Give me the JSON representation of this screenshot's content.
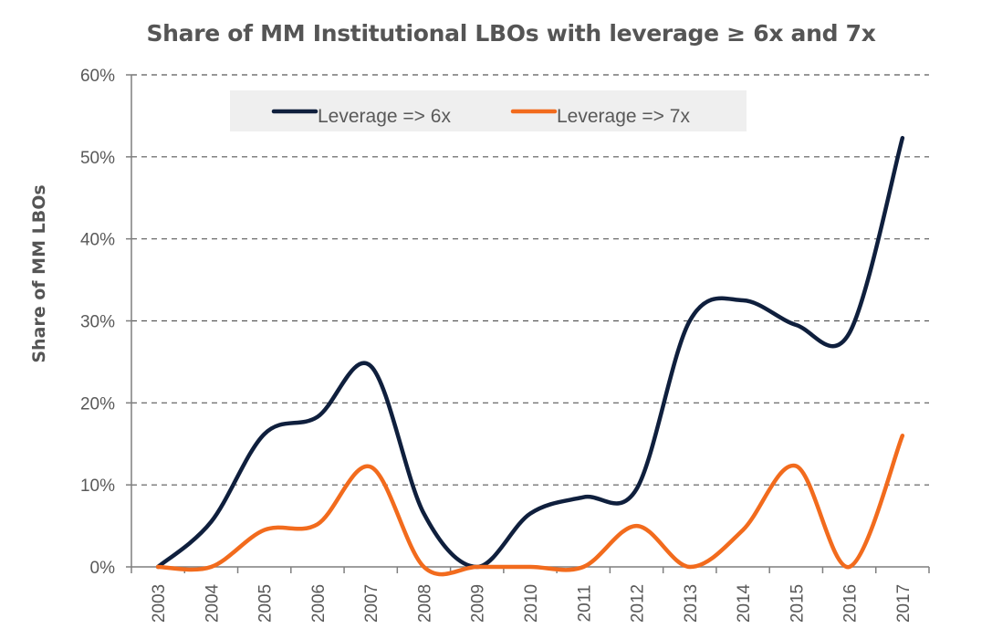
{
  "chart_data": {
    "type": "line",
    "title": "Share of MM Institutional LBOs with leverage ≥ 6x and 7x",
    "ylabel": "Share of MM LBOs",
    "xlabel": "",
    "ylim": [
      0,
      60
    ],
    "yticks": [
      "0%",
      "10%",
      "20%",
      "30%",
      "40%",
      "50%",
      "60%"
    ],
    "y_tick_values": [
      0,
      10,
      20,
      30,
      40,
      50,
      60
    ],
    "categories": [
      "2003",
      "2004",
      "2005",
      "2006",
      "2007",
      "2008",
      "2009",
      "2010",
      "2011",
      "2012",
      "2013",
      "2014",
      "2015",
      "2016",
      "2017"
    ],
    "grid": "horizontal-dashed",
    "legend_position": "top",
    "series": [
      {
        "name": "Leverage => 6x",
        "color": "#0f1f3d",
        "values": [
          0,
          5.5,
          16.2,
          18.3,
          24.5,
          6.5,
          0,
          6.5,
          8.5,
          9.5,
          30,
          32.5,
          29.5,
          28.5,
          52.3
        ]
      },
      {
        "name": "Leverage => 7x",
        "color": "#f26b1d",
        "values": [
          0,
          0,
          4.5,
          5.2,
          12.2,
          0,
          0,
          0,
          0,
          5,
          0,
          4.5,
          12.3,
          0,
          16
        ]
      }
    ],
    "legend_bg": "#efefef",
    "axis_color": "#7f7f7f",
    "grid_color": "#595959",
    "text_color": "#595959"
  }
}
